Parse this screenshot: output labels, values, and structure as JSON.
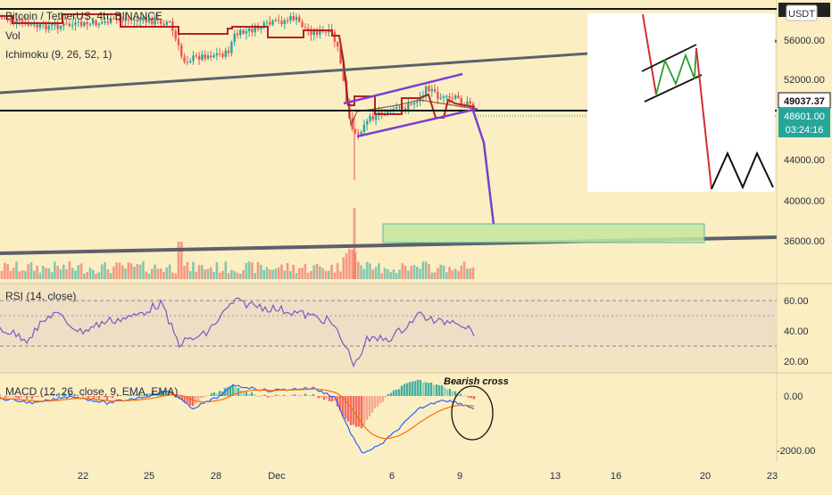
{
  "colors": {
    "background": "#fbeec3",
    "up_candle": "#26a69a",
    "down_candle": "#ef5350",
    "ichimoku_line": "#b22222",
    "trend_line": "#5d606b",
    "channel": "#7b3fd1",
    "projection": "#7b3fd1",
    "target_zone": "#c8e6a0",
    "rsi_line": "#7e57c2",
    "macd_line": "#2962ff",
    "signal_line": "#ff6d00",
    "hist_up": "#26a69a",
    "hist_down": "#ef5350"
  },
  "legend": {
    "symbol": "Bitcoin / TetherUS, 4h, BINANCE",
    "volume": "Vol",
    "ichimoku": "Ichimoku (9, 26, 52, 1)",
    "rsi": "RSI (14, close)",
    "macd": "MACD (12, 26, close, 9, EMA, EMA)"
  },
  "currency_badge": "USDT",
  "price_badges": {
    "last": "49037.37",
    "current": "48601.00",
    "countdown": "03:24:16"
  },
  "annotation": "Bearish cross",
  "chart_data": [
    {
      "type": "candlestick",
      "name": "price",
      "price_axis_ticks": [
        "56000.00",
        "52000.00",
        "48000.00",
        "44000.00",
        "40000.00",
        "36000.00"
      ],
      "x_tick_labels": [
        "22",
        "25",
        "28",
        "Dec",
        "6",
        "9",
        "13",
        "16",
        "20",
        "23"
      ],
      "ylim": [
        34000,
        58500
      ],
      "horizontal_levels": [
        57800,
        49037.37
      ],
      "target_zone": [
        36000,
        37900
      ],
      "projected_low": 37900
    },
    {
      "type": "bar",
      "name": "volume"
    },
    {
      "type": "line",
      "name": "RSI (14, close)",
      "ticks": [
        "60.00",
        "40.00",
        "20.00"
      ],
      "levels": [
        70,
        50,
        30
      ],
      "ylim": [
        15,
        75
      ]
    },
    {
      "type": "line",
      "name": "MACD (12, 26, close, 9, EMA, EMA)",
      "ticks": [
        "0.00",
        "-2000.00"
      ],
      "ylim": [
        -2400,
        700
      ]
    }
  ]
}
